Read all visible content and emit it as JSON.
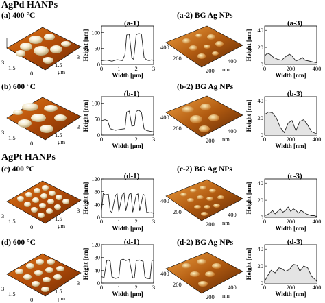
{
  "sections": [
    {
      "title": "AgPd HANPs",
      "rows": [
        {
          "condition": "(a) 400 °C",
          "afm_labels": {
            "x_ticks": [
              "0",
              "1.5",
              "3"
            ],
            "y_ticks": [
              "3",
              "1.5"
            ],
            "unit": "μm"
          },
          "profile": {
            "label": "(a-1)",
            "ylabel": "Height [nm]",
            "xlabel": "Width [μm]",
            "xticks": [
              "0",
              "1",
              "2",
              "3"
            ],
            "yticks": [
              "0",
              "50",
              "100"
            ]
          },
          "bg_label": "(a-2) BG Ag NPs",
          "bg_afm_labels": {
            "x_ticks": [
              "200",
              "400"
            ],
            "y_ticks": [
              "400",
              "200"
            ],
            "unit": "nm"
          },
          "bg_profile": {
            "label": "(a-3)",
            "ylabel": "Height [nm]",
            "xlabel": "Width [nm]",
            "xticks": [
              "0",
              "200",
              "400"
            ],
            "yticks": [
              "0",
              "20",
              "40"
            ]
          }
        },
        {
          "condition": "(b) 600 °C",
          "afm_labels": {
            "x_ticks": [
              "0",
              "1.5",
              "3"
            ],
            "y_ticks": [
              "3",
              "1.5"
            ],
            "unit": "μm"
          },
          "profile": {
            "label": "(b-1)",
            "ylabel": "Height [nm]",
            "xlabel": "Width [μm]",
            "xticks": [
              "0",
              "1",
              "2",
              "3"
            ],
            "yticks": [
              "0",
              "50",
              "100"
            ]
          },
          "bg_label": "(b-2) BG Ag NPs",
          "bg_afm_labels": {
            "x_ticks": [
              "200",
              "400"
            ],
            "y_ticks": [
              "400",
              "200"
            ],
            "unit": "nm"
          },
          "bg_profile": {
            "label": "(b-3)",
            "ylabel": "Height [nm]",
            "xlabel": "Width [nm]",
            "xticks": [
              "0",
              "200",
              "400"
            ],
            "yticks": [
              "0",
              "20",
              "40"
            ]
          }
        }
      ]
    },
    {
      "title": "AgPt HANPs",
      "rows": [
        {
          "condition": "(c) 400 °C",
          "afm_labels": {
            "x_ticks": [
              "0",
              "1.5",
              "3"
            ],
            "y_ticks": [
              "3",
              "1.5"
            ],
            "unit": "μm"
          },
          "profile": {
            "label": "(d-1)",
            "ylabel": "Height [nm]",
            "xlabel": "Width [μm]",
            "xticks": [
              "0",
              "1",
              "2",
              "3"
            ],
            "yticks": [
              "0",
              "40",
              "80",
              "120"
            ]
          },
          "bg_label": "(c-2) BG Ag NPs",
          "bg_afm_labels": {
            "x_ticks": [
              "200",
              "400"
            ],
            "y_ticks": [
              "400",
              "200"
            ],
            "unit": "nm"
          },
          "bg_profile": {
            "label": "(c-3)",
            "ylabel": "Height [nm]",
            "xlabel": "Width [nm]",
            "xticks": [
              "0",
              "200",
              "400"
            ],
            "yticks": [
              "0",
              "20",
              "40"
            ]
          }
        },
        {
          "condition": "(d) 600 °C",
          "afm_labels": {
            "x_ticks": [
              "0",
              "1.5",
              "3"
            ],
            "y_ticks": [
              "3",
              "1.5"
            ],
            "unit": "μm"
          },
          "profile": {
            "label": "(d-1)",
            "ylabel": "Height [nm]",
            "xlabel": "Width [μm]",
            "xticks": [
              "0",
              "1",
              "2",
              "3"
            ],
            "yticks": [
              "0",
              "40",
              "80",
              "120"
            ]
          },
          "bg_label": "(d-2) BG Ag NPs",
          "bg_afm_labels": {
            "x_ticks": [
              "200",
              "400"
            ],
            "y_ticks": [
              "400",
              "200"
            ],
            "unit": "nm"
          },
          "bg_profile": {
            "label": "(d-3)",
            "ylabel": "Height [nm]",
            "xlabel": "Width [nm]",
            "xticks": [
              "0",
              "200",
              "400"
            ],
            "yticks": [
              "0",
              "20",
              "40"
            ]
          }
        }
      ]
    }
  ],
  "chart_data": [
    {
      "type": "line",
      "id": "a-1",
      "xlim": [
        0,
        3
      ],
      "ylim": [
        0,
        120
      ],
      "x": [
        0,
        0.3,
        0.6,
        0.9,
        1.2,
        1.35,
        1.45,
        1.6,
        1.75,
        1.85,
        2.0,
        2.15,
        2.3,
        2.45,
        2.6,
        2.75,
        2.9,
        3.0
      ],
      "y": [
        12,
        14,
        10,
        15,
        12,
        30,
        92,
        95,
        20,
        16,
        93,
        97,
        94,
        22,
        14,
        12,
        15,
        12
      ]
    },
    {
      "type": "line",
      "id": "b-1",
      "xlim": [
        0,
        3
      ],
      "ylim": [
        0,
        120
      ],
      "x": [
        0,
        0.2,
        0.35,
        0.5,
        0.8,
        1.1,
        1.35,
        1.45,
        1.6,
        1.75,
        1.9,
        2.0,
        2.15,
        2.3,
        2.45,
        2.6,
        2.8,
        3.0
      ],
      "y": [
        45,
        48,
        45,
        20,
        15,
        18,
        20,
        72,
        75,
        28,
        30,
        74,
        78,
        70,
        20,
        14,
        12,
        10
      ]
    },
    {
      "type": "area",
      "id": "a-3",
      "xlim": [
        0,
        400
      ],
      "ylim": [
        0,
        45
      ],
      "x": [
        0,
        20,
        40,
        70,
        100,
        130,
        160,
        190,
        210,
        240,
        270,
        290,
        310,
        340,
        370,
        400
      ],
      "y": [
        10,
        13,
        12,
        8,
        6,
        5,
        9,
        12,
        10,
        4,
        6,
        8,
        5,
        4,
        3,
        2
      ]
    },
    {
      "type": "area",
      "id": "b-3",
      "xlim": [
        0,
        400
      ],
      "ylim": [
        0,
        45
      ],
      "x": [
        0,
        30,
        60,
        90,
        120,
        150,
        180,
        210,
        240,
        270,
        300,
        330,
        360,
        390,
        400
      ],
      "y": [
        24,
        27,
        26,
        20,
        9,
        3,
        14,
        17,
        5,
        16,
        18,
        12,
        4,
        2,
        1
      ]
    },
    {
      "type": "line",
      "id": "d-1-c",
      "xlim": [
        0,
        3
      ],
      "ylim": [
        0,
        120
      ],
      "x": [
        0,
        0.1,
        0.2,
        0.4,
        0.5,
        0.6,
        0.8,
        0.9,
        1.0,
        1.2,
        1.3,
        1.4,
        1.6,
        1.7,
        1.8,
        2.0,
        2.1,
        2.2,
        2.4,
        2.5,
        2.6,
        2.8,
        2.9,
        3.0
      ],
      "y": [
        20,
        75,
        70,
        72,
        20,
        15,
        68,
        74,
        18,
        70,
        76,
        20,
        72,
        75,
        16,
        70,
        73,
        20,
        72,
        68,
        16,
        14,
        15,
        12
      ]
    },
    {
      "type": "line",
      "id": "d-1-d",
      "xlim": [
        0,
        3
      ],
      "ylim": [
        0,
        120
      ],
      "x": [
        0,
        0.15,
        0.3,
        0.4,
        0.5,
        0.6,
        0.8,
        1.0,
        1.1,
        1.25,
        1.4,
        1.6,
        1.8,
        1.9,
        2.0,
        2.2,
        2.4,
        2.5,
        2.6,
        2.8,
        2.9,
        3.0
      ],
      "y": [
        20,
        18,
        70,
        72,
        68,
        20,
        15,
        18,
        72,
        75,
        70,
        74,
        16,
        18,
        70,
        72,
        68,
        20,
        15,
        14,
        70,
        72
      ]
    },
    {
      "type": "area",
      "id": "c-3",
      "xlim": [
        0,
        400
      ],
      "ylim": [
        0,
        45
      ],
      "x": [
        0,
        20,
        40,
        60,
        80,
        100,
        120,
        140,
        160,
        180,
        200,
        220,
        240,
        260,
        280,
        300,
        320,
        340,
        360,
        380,
        400
      ],
      "y": [
        2,
        3,
        5,
        8,
        4,
        7,
        10,
        6,
        8,
        12,
        7,
        10,
        8,
        5,
        8,
        6,
        4,
        3,
        2,
        2,
        1
      ]
    },
    {
      "type": "area",
      "id": "d-3",
      "xlim": [
        0,
        400
      ],
      "ylim": [
        0,
        45
      ],
      "x": [
        0,
        20,
        50,
        80,
        110,
        130,
        160,
        190,
        220,
        250,
        270,
        300,
        330,
        360,
        390,
        400
      ],
      "y": [
        2,
        8,
        15,
        12,
        18,
        17,
        14,
        16,
        22,
        21,
        14,
        20,
        18,
        8,
        4,
        2
      ]
    }
  ]
}
